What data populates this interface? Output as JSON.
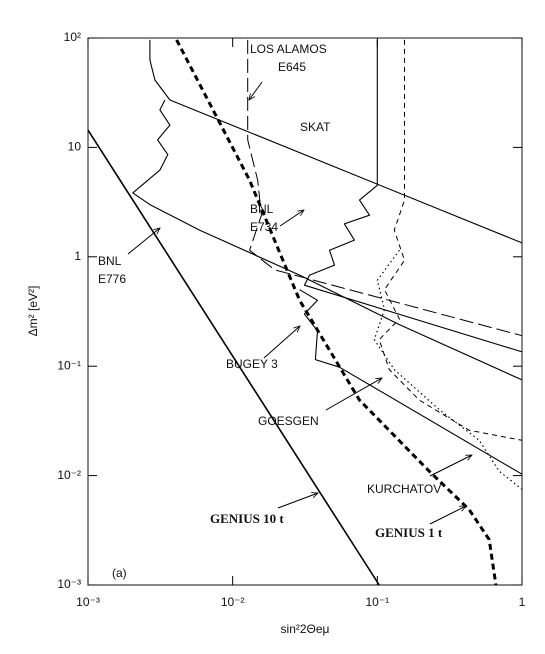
{
  "chart_data": {
    "type": "line",
    "xscale": "log",
    "yscale": "log",
    "xlim": [
      0.001,
      1
    ],
    "ylim": [
      0.001,
      100
    ],
    "xticks": [
      {
        "value": 0.001,
        "label": "10⁻³"
      },
      {
        "value": 0.01,
        "label": "10⁻²"
      },
      {
        "value": 0.1,
        "label": "10⁻¹"
      },
      1
    ],
    "yticks": [
      {
        "value": 100,
        "label": "10²"
      },
      10,
      1,
      {
        "value": 0.1,
        "label": "10⁻¹"
      },
      {
        "value": 0.01,
        "label": "10⁻²"
      },
      {
        "value": 0.001,
        "label": "10⁻³"
      }
    ],
    "xlabel": "sin²2Θeμ",
    "ylabel": "Δm² [eV²]",
    "panel_label": "(a)",
    "color": "#000000",
    "series": [
      {
        "name": [
          "LOS ALAMOS",
          "E645"
        ],
        "style": "long-dashed",
        "x": [
          0.0127,
          0.0127,
          0.0149,
          0.0158,
          0.0131,
          0.0195,
          1
        ],
        "values": [
          96,
          11.7,
          5.0,
          2.4,
          1.15,
          0.76,
          0.19
        ]
      },
      {
        "name": [
          "SKAT"
        ],
        "style": "solid",
        "x": [
          0.00268,
          0.00268,
          0.0029,
          0.00368,
          1
        ],
        "values": [
          96,
          63,
          41.3,
          27.1,
          1.34
        ]
      },
      {
        "name": [
          "BNL",
          "E734"
        ],
        "style": "solid",
        "x": [
          0.1,
          0.1,
          0.0753,
          0.0883,
          0.0592,
          0.0694,
          0.0467,
          0.0506,
          0.034,
          0.0313,
          1
        ],
        "values": [
          96,
          4.5,
          3.3,
          2.4,
          2.0,
          1.42,
          1.15,
          0.84,
          0.68,
          0.55,
          0.135
        ]
      },
      {
        "name": [
          "BNL",
          "E776"
        ],
        "style": "solid",
        "x": [
          0.0034,
          0.00314,
          0.00368,
          0.00303,
          0.00356,
          0.00314,
          0.00204,
          0.00268,
          0.00593,
          0.029,
          0.142,
          1
        ],
        "values": [
          27.1,
          22,
          16,
          11.7,
          8.6,
          6.2,
          3.84,
          3.0,
          1.75,
          0.68,
          0.24,
          0.075
        ]
      },
      {
        "name": [
          "BUGEY 3"
        ],
        "style": "solid",
        "x": [
          0.029,
          0.0386,
          0.0313,
          0.0386,
          0.0373,
          0.0548,
          1
        ],
        "values": [
          0.5,
          0.4,
          0.3,
          0.21,
          0.115,
          0.098,
          0.0103
        ]
      },
      {
        "name": [
          "GOESGEN"
        ],
        "style": "dashed",
        "x": [
          0.154,
          0.154,
          0.131,
          0.154,
          0.112,
          0.142,
          0.103,
          0.121,
          0.195,
          0.431,
          1
        ],
        "values": [
          96,
          3.3,
          1.75,
          0.93,
          0.5,
          0.27,
          0.175,
          0.093,
          0.049,
          0.026,
          0.021
        ]
      },
      {
        "name": [
          "KURCHATOV"
        ],
        "style": "dotted",
        "x": [
          0.142,
          0.1,
          0.112,
          0.0953,
          0.131,
          0.268,
          0.506,
          0.695,
          1
        ],
        "values": [
          1.15,
          0.61,
          0.33,
          0.175,
          0.093,
          0.04,
          0.021,
          0.011,
          0.0075
        ]
      },
      {
        "name": [
          "GENIUS 10 t"
        ],
        "style": "solid-bold",
        "x": [
          0.001,
          0.103
        ],
        "values": [
          14.4,
          0.001
        ]
      },
      {
        "name": [
          "GENIUS 1 t"
        ],
        "style": "thick-dashed",
        "x": [
          0.0041,
          0.0131,
          0.029,
          0.0753,
          0.228,
          0.431,
          0.593,
          0.66
        ],
        "values": [
          96,
          5.0,
          0.4,
          0.049,
          0.011,
          0.0049,
          0.0026,
          0.001
        ]
      }
    ]
  }
}
